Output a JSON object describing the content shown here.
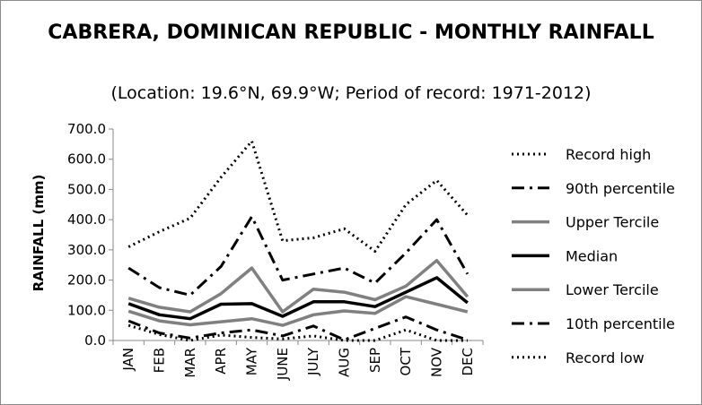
{
  "chart_data": {
    "type": "line",
    "title": "CABRERA, DOMINICAN REPUBLIC - MONTHLY RAINFALL",
    "subtitle": "(Location: 19.6°N, 69.9°W; Period of record: 1971-2012)",
    "ylabel": "RAINFALL (mm)",
    "xlabel": "",
    "ylim": [
      0,
      700
    ],
    "yticks": [
      "0.0",
      "100.0",
      "200.0",
      "300.0",
      "400.0",
      "500.0",
      "600.0",
      "700.0"
    ],
    "categories": [
      "JAN",
      "FEB",
      "MAR",
      "APR",
      "MAY",
      "JUNE",
      "JULY",
      "AUG",
      "SEP",
      "OCT",
      "NOV",
      "DEC"
    ],
    "grid": false,
    "legend_position": "right",
    "series": [
      {
        "name": "Record high",
        "style": "dotted",
        "color": "#000000",
        "values": [
          310,
          360,
          405,
          540,
          660,
          330,
          340,
          370,
          295,
          450,
          530,
          415
        ]
      },
      {
        "name": "90th percentile",
        "style": "dashdot",
        "color": "#000000",
        "values": [
          240,
          175,
          150,
          245,
          410,
          200,
          220,
          240,
          190,
          290,
          400,
          220
        ]
      },
      {
        "name": "Upper Tercile",
        "style": "solid-gray",
        "color": "#808080",
        "values": [
          140,
          110,
          95,
          155,
          240,
          95,
          170,
          160,
          135,
          180,
          265,
          145
        ]
      },
      {
        "name": "Median",
        "style": "solid-black",
        "color": "#000000",
        "values": [
          122,
          85,
          72,
          120,
          122,
          80,
          128,
          128,
          112,
          160,
          208,
          125
        ]
      },
      {
        "name": "Lower Tercile",
        "style": "solid-gray",
        "color": "#808080",
        "values": [
          97,
          65,
          52,
          62,
          72,
          50,
          85,
          98,
          90,
          145,
          120,
          95
        ]
      },
      {
        "name": "10th percentile",
        "style": "dashdot",
        "color": "#000000",
        "values": [
          65,
          25,
          8,
          25,
          35,
          15,
          48,
          2,
          40,
          78,
          35,
          2
        ]
      },
      {
        "name": "Record low",
        "style": "dotted",
        "color": "#000000",
        "values": [
          50,
          20,
          0,
          18,
          10,
          5,
          15,
          0,
          0,
          35,
          0,
          0
        ]
      }
    ]
  }
}
